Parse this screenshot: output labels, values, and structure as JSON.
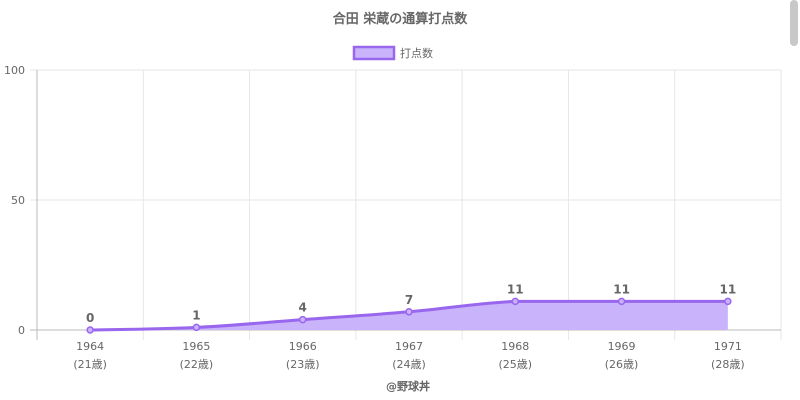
{
  "chart_data": {
    "type": "area",
    "title": "合田 栄蔵の通算打点数",
    "categories": [
      "1964",
      "1965",
      "1966",
      "1967",
      "1968",
      "1969",
      "1971"
    ],
    "sublabels": [
      "(21歳)",
      "(22歳)",
      "(23歳)",
      "(24歳)",
      "(25歳)",
      "(26歳)",
      "(28歳)"
    ],
    "series": [
      {
        "name": "打点数",
        "values": [
          0,
          1,
          4,
          7,
          11,
          11,
          11
        ]
      }
    ],
    "data_labels": [
      "0",
      "1",
      "4",
      "7",
      "11",
      "11",
      "11"
    ],
    "ylim": [
      0,
      100
    ],
    "yticks": [
      "0",
      "50",
      "100"
    ],
    "legend_position": "top-center",
    "grid": true,
    "credit": "@野球丼",
    "colors": {
      "line": "#9966ee",
      "fill": "#c9b3fa",
      "grid": "#e6e6e6",
      "axis": "#bbbbbb"
    }
  }
}
